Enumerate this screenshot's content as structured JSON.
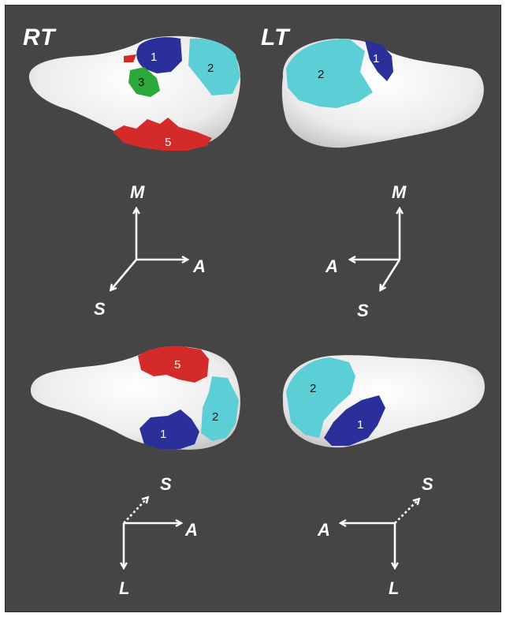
{
  "side_labels": {
    "right": "RT",
    "left": "LT"
  },
  "axis_labels": {
    "medial": "M",
    "anterior": "A",
    "superior": "S",
    "lateral": "L"
  },
  "regions": {
    "r1": "1",
    "r2": "2",
    "r3": "3",
    "r5": "5"
  },
  "colors": {
    "background": "#454545",
    "bone": "#f2f2f2",
    "region_1": "#2a2f9a",
    "region_2": "#5ccfd6",
    "region_3": "#2aa83a",
    "region_5": "#d42a2a",
    "arrows": "#ffffff"
  }
}
